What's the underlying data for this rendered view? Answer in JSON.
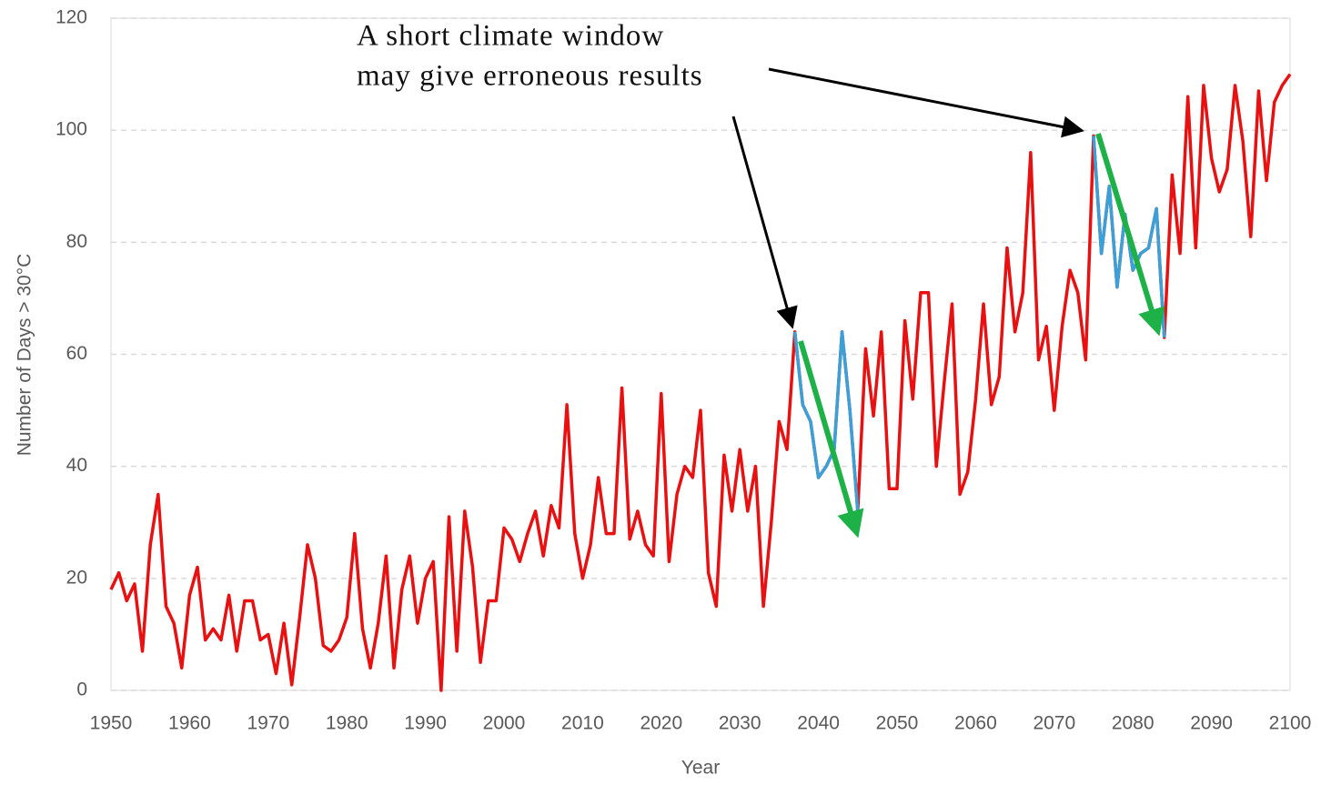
{
  "chart_data": {
    "type": "line",
    "xlabel": "Year",
    "ylabel": "Number  of Days > 30°C",
    "annotation": [
      "A short climate window",
      "may give erroneous results"
    ],
    "x": [
      1950,
      1951,
      1952,
      1953,
      1954,
      1955,
      1956,
      1957,
      1958,
      1959,
      1960,
      1961,
      1962,
      1963,
      1964,
      1965,
      1966,
      1967,
      1968,
      1969,
      1970,
      1971,
      1972,
      1973,
      1974,
      1975,
      1976,
      1977,
      1978,
      1979,
      1980,
      1981,
      1982,
      1983,
      1984,
      1985,
      1986,
      1987,
      1988,
      1989,
      1990,
      1991,
      1992,
      1993,
      1994,
      1995,
      1996,
      1997,
      1998,
      1999,
      2000,
      2001,
      2002,
      2003,
      2004,
      2005,
      2006,
      2007,
      2008,
      2009,
      2010,
      2011,
      2012,
      2013,
      2014,
      2015,
      2016,
      2017,
      2018,
      2019,
      2020,
      2021,
      2022,
      2023,
      2024,
      2025,
      2026,
      2027,
      2028,
      2029,
      2030,
      2031,
      2032,
      2033,
      2034,
      2035,
      2036,
      2037,
      2038,
      2039,
      2040,
      2041,
      2042,
      2043,
      2044,
      2045,
      2046,
      2047,
      2048,
      2049,
      2050,
      2051,
      2052,
      2053,
      2054,
      2055,
      2056,
      2057,
      2058,
      2059,
      2060,
      2061,
      2062,
      2063,
      2064,
      2065,
      2066,
      2067,
      2068,
      2069,
      2070,
      2071,
      2072,
      2073,
      2074,
      2075,
      2076,
      2077,
      2078,
      2079,
      2080,
      2081,
      2082,
      2083,
      2084,
      2085,
      2086,
      2087,
      2088,
      2089,
      2090,
      2091,
      2092,
      2093,
      2094,
      2095,
      2096,
      2097,
      2098,
      2099,
      2100
    ],
    "series": [
      {
        "color": "#e81010",
        "values": [
          18,
          21,
          16,
          19,
          7,
          26,
          35,
          15,
          12,
          4,
          17,
          22,
          9,
          11,
          9,
          17,
          7,
          16,
          16,
          9,
          10,
          3,
          12,
          1,
          13,
          26,
          20,
          8,
          7,
          9,
          13,
          28,
          11,
          4,
          12,
          24,
          4,
          18,
          24,
          12,
          20,
          23,
          0,
          31,
          7,
          32,
          22,
          5,
          16,
          16,
          29,
          27,
          23,
          28,
          32,
          24,
          33,
          29,
          51,
          28,
          20,
          26,
          38,
          28,
          28,
          54,
          27,
          32,
          26,
          24,
          53,
          23,
          35,
          40,
          38,
          50,
          21,
          15,
          42,
          32,
          43,
          32,
          40,
          15,
          30,
          48,
          43,
          64,
          51,
          48,
          38,
          40,
          43,
          64,
          50,
          32,
          61,
          49,
          64,
          36,
          36,
          66,
          52,
          71,
          71,
          40,
          55,
          69,
          35,
          39,
          52,
          69,
          51,
          56,
          79,
          64,
          71,
          96,
          59,
          65,
          50,
          65,
          75,
          71,
          59,
          99,
          78,
          90,
          72,
          85,
          75,
          78,
          79,
          86,
          63,
          92,
          78,
          106,
          79,
          108,
          95,
          89,
          93,
          108,
          98,
          81,
          107,
          91,
          105,
          108,
          110
        ]
      },
      {
        "color": "#3aa0d8",
        "values": [
          null,
          null,
          null,
          null,
          null,
          null,
          null,
          null,
          null,
          null,
          null,
          null,
          null,
          null,
          null,
          null,
          null,
          null,
          null,
          null,
          null,
          null,
          null,
          null,
          null,
          null,
          null,
          null,
          null,
          null,
          null,
          null,
          null,
          null,
          null,
          null,
          null,
          null,
          null,
          null,
          null,
          null,
          null,
          null,
          null,
          null,
          null,
          null,
          null,
          null,
          null,
          null,
          null,
          null,
          null,
          null,
          null,
          null,
          null,
          null,
          null,
          null,
          null,
          null,
          null,
          null,
          null,
          null,
          null,
          null,
          null,
          null,
          null,
          null,
          null,
          null,
          null,
          null,
          null,
          null,
          null,
          null,
          null,
          null,
          null,
          null,
          null,
          64,
          51,
          48,
          38,
          40,
          43,
          64,
          50,
          32,
          null,
          null,
          null,
          null,
          null,
          null,
          null,
          null,
          null,
          null,
          null,
          null,
          null,
          null,
          null,
          null,
          null,
          null,
          null,
          null,
          null,
          null,
          null,
          null,
          null,
          null,
          null,
          null,
          null,
          99,
          78,
          90,
          72,
          85,
          75,
          78,
          79,
          86,
          63,
          null,
          null,
          null,
          null,
          null,
          null,
          null,
          null,
          null,
          null,
          null,
          null,
          null,
          null,
          null,
          null
        ]
      }
    ],
    "xlim": [
      1950,
      2100
    ],
    "xticks": [
      1950,
      1960,
      1970,
      1980,
      1990,
      2000,
      2010,
      2020,
      2030,
      2040,
      2050,
      2060,
      2070,
      2080,
      2090,
      2100
    ],
    "ylim": [
      0,
      120
    ],
    "yticks": [
      0,
      20,
      40,
      60,
      80,
      100,
      120
    ],
    "grid": true
  }
}
